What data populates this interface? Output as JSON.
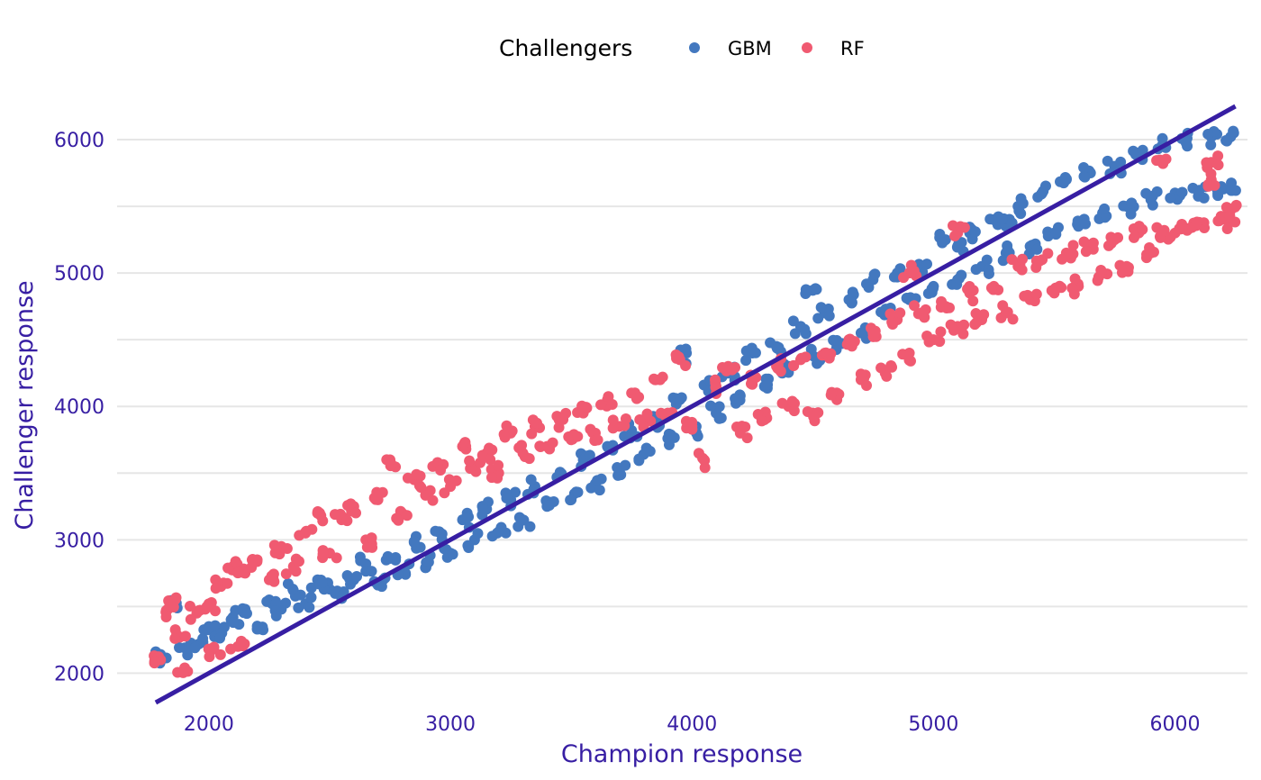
{
  "chart_data": {
    "type": "scatter",
    "xlabel": "Champion response",
    "ylabel": "Challenger response",
    "legend_title": "Challengers",
    "legend_position": "top",
    "xlim": [
      1620,
      6300
    ],
    "ylim": [
      1780,
      6250
    ],
    "x_ticks": [
      "2000",
      "3000",
      "4000",
      "5000",
      "6000"
    ],
    "y_ticks": [
      "2000",
      "3000",
      "4000",
      "5000",
      "6000"
    ],
    "grid": true,
    "reference_line": {
      "slope": 1,
      "intercept": 0,
      "color": "#371ea3"
    },
    "series": [
      {
        "name": "GBM",
        "color": "#4378bf",
        "points": [
          [
            1810,
            2110
          ],
          [
            1850,
            2520
          ],
          [
            1900,
            2190
          ],
          [
            1950,
            2210
          ],
          [
            2000,
            2350
          ],
          [
            2050,
            2300
          ],
          [
            2100,
            2420
          ],
          [
            2150,
            2480
          ],
          [
            2200,
            2330
          ],
          [
            2250,
            2550
          ],
          [
            2300,
            2480
          ],
          [
            2350,
            2620
          ],
          [
            2400,
            2520
          ],
          [
            2450,
            2700
          ],
          [
            2500,
            2630
          ],
          [
            2550,
            2560
          ],
          [
            2600,
            2700
          ],
          [
            2650,
            2820
          ],
          [
            2700,
            2660
          ],
          [
            2750,
            2860
          ],
          [
            2800,
            2760
          ],
          [
            2850,
            2980
          ],
          [
            2900,
            2830
          ],
          [
            2950,
            3060
          ],
          [
            3000,
            2900
          ],
          [
            3050,
            3150
          ],
          [
            3100,
            3000
          ],
          [
            3150,
            3230
          ],
          [
            3200,
            3060
          ],
          [
            3250,
            3300
          ],
          [
            3300,
            3150
          ],
          [
            3350,
            3400
          ],
          [
            3400,
            3250
          ],
          [
            3450,
            3480
          ],
          [
            3500,
            3300
          ],
          [
            3550,
            3600
          ],
          [
            3600,
            3420
          ],
          [
            3650,
            3700
          ],
          [
            3700,
            3520
          ],
          [
            3750,
            3820
          ],
          [
            3800,
            3640
          ],
          [
            3850,
            3900
          ],
          [
            3900,
            3760
          ],
          [
            3950,
            4050
          ],
          [
            4000,
            3830
          ],
          [
            4050,
            4160
          ],
          [
            4100,
            3950
          ],
          [
            4150,
            4250
          ],
          [
            4200,
            4080
          ],
          [
            4250,
            4400
          ],
          [
            4300,
            4150
          ],
          [
            4350,
            4450
          ],
          [
            4400,
            4300
          ],
          [
            4450,
            4600
          ],
          [
            4500,
            4380
          ],
          [
            4550,
            4700
          ],
          [
            4600,
            4450
          ],
          [
            4650,
            4800
          ],
          [
            4700,
            4550
          ],
          [
            4750,
            4950
          ],
          [
            4800,
            4700
          ],
          [
            4850,
            5000
          ],
          [
            4900,
            4800
          ],
          [
            4950,
            5050
          ],
          [
            5000,
            4900
          ],
          [
            5050,
            5250
          ],
          [
            5100,
            4950
          ],
          [
            5150,
            5300
          ],
          [
            5200,
            5050
          ],
          [
            5250,
            5400
          ],
          [
            5300,
            5150
          ],
          [
            5350,
            5500
          ],
          [
            5400,
            5200
          ],
          [
            5450,
            5600
          ],
          [
            5500,
            5300
          ],
          [
            5550,
            5700
          ],
          [
            5600,
            5350
          ],
          [
            5650,
            5750
          ],
          [
            5700,
            5450
          ],
          [
            5750,
            5800
          ],
          [
            5800,
            5500
          ],
          [
            5850,
            5900
          ],
          [
            5900,
            5550
          ],
          [
            5950,
            5950
          ],
          [
            6000,
            5600
          ],
          [
            6050,
            6010
          ],
          [
            6100,
            5620
          ],
          [
            6150,
            6020
          ],
          [
            6200,
            5630
          ],
          [
            6230,
            6020
          ],
          [
            6230,
            5630
          ],
          [
            5300,
            5350
          ],
          [
            5100,
            5200
          ],
          [
            4500,
            4870
          ],
          [
            3950,
            4380
          ]
        ]
      },
      {
        "name": "RF",
        "color": "#f05a71",
        "points": [
          [
            1800,
            2100
          ],
          [
            1830,
            2480
          ],
          [
            1860,
            2550
          ],
          [
            1880,
            2270
          ],
          [
            1900,
            2040
          ],
          [
            1950,
            2450
          ],
          [
            2000,
            2520
          ],
          [
            2020,
            2180
          ],
          [
            2050,
            2650
          ],
          [
            2100,
            2800
          ],
          [
            2120,
            2200
          ],
          [
            2150,
            2750
          ],
          [
            2200,
            2850
          ],
          [
            2250,
            2700
          ],
          [
            2300,
            2950
          ],
          [
            2350,
            2800
          ],
          [
            2400,
            3050
          ],
          [
            2450,
            3200
          ],
          [
            2500,
            2900
          ],
          [
            2550,
            3150
          ],
          [
            2600,
            3250
          ],
          [
            2650,
            3000
          ],
          [
            2700,
            3300
          ],
          [
            2750,
            3600
          ],
          [
            2800,
            3200
          ],
          [
            2850,
            3450
          ],
          [
            2900,
            3350
          ],
          [
            2950,
            3550
          ],
          [
            3000,
            3400
          ],
          [
            3050,
            3700
          ],
          [
            3100,
            3550
          ],
          [
            3150,
            3650
          ],
          [
            3200,
            3500
          ],
          [
            3250,
            3800
          ],
          [
            3300,
            3650
          ],
          [
            3350,
            3850
          ],
          [
            3400,
            3700
          ],
          [
            3450,
            3900
          ],
          [
            3500,
            3750
          ],
          [
            3550,
            3950
          ],
          [
            3600,
            3800
          ],
          [
            3650,
            4050
          ],
          [
            3700,
            3850
          ],
          [
            3750,
            4100
          ],
          [
            3800,
            3900
          ],
          [
            3850,
            4200
          ],
          [
            3900,
            3950
          ],
          [
            3950,
            4350
          ],
          [
            4000,
            3850
          ],
          [
            4050,
            3600
          ],
          [
            4100,
            4150
          ],
          [
            4150,
            4300
          ],
          [
            4200,
            3800
          ],
          [
            4250,
            4200
          ],
          [
            4300,
            3900
          ],
          [
            4350,
            4300
          ],
          [
            4400,
            4000
          ],
          [
            4450,
            4350
          ],
          [
            4500,
            3950
          ],
          [
            4550,
            4400
          ],
          [
            4600,
            4050
          ],
          [
            4650,
            4500
          ],
          [
            4700,
            4200
          ],
          [
            4750,
            4550
          ],
          [
            4800,
            4250
          ],
          [
            4850,
            4650
          ],
          [
            4900,
            4400
          ],
          [
            4950,
            4700
          ],
          [
            5000,
            4500
          ],
          [
            5050,
            4750
          ],
          [
            5100,
            4600
          ],
          [
            5150,
            4850
          ],
          [
            5200,
            4650
          ],
          [
            5250,
            4900
          ],
          [
            5300,
            4700
          ],
          [
            5350,
            5050
          ],
          [
            5400,
            4800
          ],
          [
            5450,
            5100
          ],
          [
            5500,
            4850
          ],
          [
            5550,
            5150
          ],
          [
            5600,
            4900
          ],
          [
            5650,
            5200
          ],
          [
            5700,
            5000
          ],
          [
            5750,
            5250
          ],
          [
            5800,
            5050
          ],
          [
            5850,
            5300
          ],
          [
            5900,
            5150
          ],
          [
            5950,
            5300
          ],
          [
            6000,
            5300
          ],
          [
            6050,
            5320
          ],
          [
            6100,
            5380
          ],
          [
            6150,
            5700
          ],
          [
            6150,
            5830
          ],
          [
            6200,
            5420
          ],
          [
            6230,
            5390
          ],
          [
            6230,
            5470
          ],
          [
            5950,
            5820
          ],
          [
            5100,
            5300
          ],
          [
            4900,
            5000
          ]
        ]
      }
    ]
  }
}
